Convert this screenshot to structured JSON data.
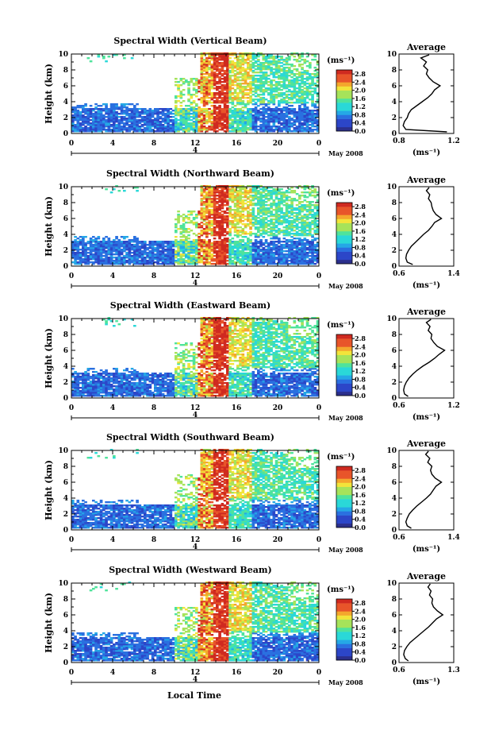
{
  "figure": {
    "xlabel": "Local Time",
    "date_label": "May 2008",
    "day_label": "4",
    "ylabel": "Height (km)",
    "units": "(ms⁻¹)",
    "avg_title": "Average",
    "avg_units": "(ms⁻¹)",
    "colorbar_ticks": [
      "0.0",
      "0.4",
      "0.8",
      "1.2",
      "1.6",
      "2.0",
      "2.4",
      "2.8"
    ],
    "colormap": [
      "#2b2f8c",
      "#2c46c8",
      "#2a70e0",
      "#25a8e6",
      "#2ad8d8",
      "#4fe39c",
      "#a6e35a",
      "#f2e43a",
      "#f4a72d",
      "#e8552a",
      "#cf2a20"
    ]
  },
  "chart_data": [
    {
      "type": "heatmap",
      "title": "Spectral Width (Vertical Beam)",
      "x_ticks": [
        "0",
        "4",
        "8",
        "12",
        "16",
        "20",
        "0"
      ],
      "y_ticks": [
        "0",
        "2",
        "4",
        "6",
        "8",
        "10"
      ],
      "xlim": [
        0,
        24
      ],
      "ylim": [
        0,
        10
      ],
      "clim": [
        0,
        3.0
      ],
      "average_profile": {
        "x_ticks": [
          "0.8",
          "1.2"
        ],
        "xlim": [
          0.8,
          1.2
        ],
        "height": [
          0.2,
          0.5,
          1.0,
          1.5,
          2.0,
          2.5,
          3.0,
          3.5,
          4.0,
          4.5,
          5.0,
          5.5,
          6.0,
          6.5,
          7.0,
          7.5,
          8.0,
          8.5,
          9.0,
          9.5,
          9.9
        ],
        "value": [
          1.15,
          0.85,
          0.83,
          0.84,
          0.86,
          0.87,
          0.89,
          0.93,
          0.97,
          1.01,
          1.04,
          1.06,
          1.1,
          1.05,
          1.02,
          1.0,
          1.01,
          0.98,
          1.0,
          0.96,
          1.02
        ]
      }
    },
    {
      "type": "heatmap",
      "title": "Spectral Width (Northward Beam)",
      "x_ticks": [
        "0",
        "4",
        "8",
        "12",
        "16",
        "20",
        "0"
      ],
      "y_ticks": [
        "0",
        "2",
        "4",
        "6",
        "8",
        "10"
      ],
      "xlim": [
        0,
        24
      ],
      "ylim": [
        0,
        10
      ],
      "clim": [
        0,
        3.0
      ],
      "average_profile": {
        "x_ticks": [
          "0.6",
          "1.4"
        ],
        "xlim": [
          0.6,
          1.4
        ],
        "height": [
          0.2,
          0.5,
          1.0,
          1.5,
          2.0,
          2.5,
          3.0,
          3.5,
          4.0,
          4.5,
          5.0,
          5.5,
          6.0,
          6.5,
          7.0,
          7.5,
          8.0,
          8.5,
          9.0,
          9.5,
          9.9
        ],
        "value": [
          0.8,
          0.72,
          0.7,
          0.71,
          0.74,
          0.78,
          0.84,
          0.9,
          0.96,
          1.03,
          1.08,
          1.12,
          1.22,
          1.14,
          1.1,
          1.08,
          1.07,
          1.03,
          1.05,
          1.0,
          1.04
        ]
      }
    },
    {
      "type": "heatmap",
      "title": "Spectral Width (Eastward Beam)",
      "x_ticks": [
        "0",
        "4",
        "8",
        "12",
        "16",
        "20",
        "0"
      ],
      "y_ticks": [
        "0",
        "2",
        "4",
        "6",
        "8",
        "10"
      ],
      "xlim": [
        0,
        24
      ],
      "ylim": [
        0,
        10
      ],
      "clim": [
        0,
        3.0
      ],
      "average_profile": {
        "x_ticks": [
          "0.6",
          "1.2"
        ],
        "xlim": [
          0.6,
          1.2
        ],
        "height": [
          0.2,
          0.5,
          1.0,
          1.5,
          2.0,
          2.5,
          3.0,
          3.5,
          4.0,
          4.5,
          5.0,
          5.5,
          6.0,
          6.5,
          7.0,
          7.5,
          8.0,
          8.5,
          9.0,
          9.5,
          9.9
        ],
        "value": [
          0.7,
          0.66,
          0.65,
          0.66,
          0.68,
          0.71,
          0.75,
          0.8,
          0.86,
          0.93,
          0.99,
          1.04,
          1.1,
          1.02,
          0.98,
          0.95,
          0.96,
          0.92,
          0.94,
          0.9,
          0.95
        ]
      }
    },
    {
      "type": "heatmap",
      "title": "Spectral Width (Southward Beam)",
      "x_ticks": [
        "0",
        "4",
        "8",
        "12",
        "16",
        "20",
        "0"
      ],
      "y_ticks": [
        "0",
        "2",
        "4",
        "6",
        "8",
        "10"
      ],
      "xlim": [
        0,
        24
      ],
      "ylim": [
        0,
        10
      ],
      "clim": [
        0,
        3.0
      ],
      "average_profile": {
        "x_ticks": [
          "0.6",
          "1.4"
        ],
        "xlim": [
          0.6,
          1.4
        ],
        "height": [
          0.2,
          0.5,
          1.0,
          1.5,
          2.0,
          2.5,
          3.0,
          3.5,
          4.0,
          4.5,
          5.0,
          5.5,
          6.0,
          6.5,
          7.0,
          7.5,
          8.0,
          8.5,
          9.0,
          9.5,
          9.9
        ],
        "value": [
          0.78,
          0.72,
          0.7,
          0.72,
          0.75,
          0.8,
          0.86,
          0.93,
          1.0,
          1.06,
          1.1,
          1.14,
          1.22,
          1.13,
          1.08,
          1.06,
          1.08,
          1.02,
          1.05,
          0.99,
          1.03
        ]
      }
    },
    {
      "type": "heatmap",
      "title": "Spectral Width (Westward Beam)",
      "x_ticks": [
        "0",
        "4",
        "8",
        "12",
        "16",
        "20",
        "0"
      ],
      "y_ticks": [
        "0",
        "2",
        "4",
        "6",
        "8",
        "10"
      ],
      "xlim": [
        0,
        24
      ],
      "ylim": [
        0,
        10
      ],
      "clim": [
        0,
        3.0
      ],
      "average_profile": {
        "x_ticks": [
          "0.6",
          "1.3"
        ],
        "xlim": [
          0.6,
          1.3
        ],
        "height": [
          0.2,
          0.5,
          1.0,
          1.5,
          2.0,
          2.5,
          3.0,
          3.5,
          4.0,
          4.5,
          5.0,
          5.5,
          6.0,
          6.5,
          7.0,
          7.5,
          8.0,
          8.5,
          9.0,
          9.5,
          9.9
        ],
        "value": [
          0.72,
          0.68,
          0.66,
          0.67,
          0.7,
          0.74,
          0.8,
          0.86,
          0.92,
          0.98,
          1.03,
          1.08,
          1.16,
          1.09,
          1.04,
          1.02,
          1.03,
          0.99,
          1.01,
          0.97,
          1.0
        ]
      }
    }
  ]
}
